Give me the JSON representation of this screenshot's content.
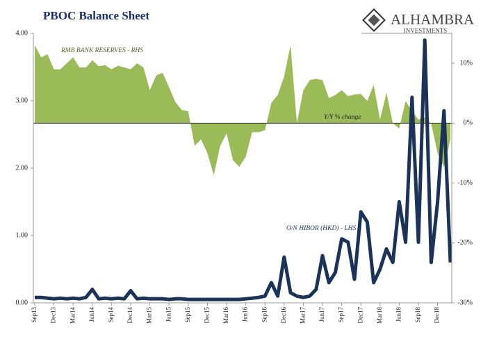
{
  "chart_data": {
    "type": "line",
    "title": "PBOC Balance Sheet",
    "logo": {
      "name": "ALHAMBRA",
      "tagline": "INVESTMENTS"
    },
    "annotations": [
      "RMB BANK RESERVES - RHS",
      "Y/Y % change",
      "O/N HIBOR (HKD) - LHS"
    ],
    "categories": [
      "Sep13",
      null,
      null,
      "Dec13",
      null,
      null,
      "Mar14",
      null,
      null,
      "Jun14",
      null,
      null,
      "Sep14",
      null,
      null,
      "Dec14",
      null,
      null,
      "Mar15",
      null,
      null,
      "Jun15",
      null,
      null,
      "Sep15",
      null,
      null,
      "Dec15",
      null,
      null,
      "Mar16",
      null,
      null,
      "Jun16",
      null,
      null,
      "Sep16",
      null,
      null,
      "Dec16",
      null,
      null,
      "Mar17",
      null,
      null,
      "Jun17",
      null,
      null,
      "Sep17",
      null,
      null,
      "Dec17",
      null,
      null,
      "Mar18",
      null,
      null,
      "Jun18",
      null,
      null,
      "Sep18",
      null,
      null,
      "Dec18",
      null,
      null
    ],
    "series": [
      {
        "name": "RMB BANK RESERVES - RHS",
        "type": "area",
        "axis": "y2",
        "color": "#9bbb59",
        "values": [
          13,
          11,
          11.5,
          9,
          9,
          10,
          11,
          9.3,
          9.3,
          10.5,
          9.5,
          9.7,
          9,
          9.6,
          9.3,
          9,
          10,
          9.3,
          5.5,
          8,
          8.4,
          6,
          3.5,
          2.2,
          2,
          -3.8,
          -2.7,
          -5,
          -8.7,
          -3.8,
          -1.7,
          -6.2,
          -7.3,
          -5.6,
          -1.5,
          -1.5,
          -1.2,
          3.4,
          4.7,
          7.8,
          13,
          0,
          5.5,
          7.2,
          7.4,
          7.2,
          4.2,
          4.7,
          5.5,
          4.5,
          4.8,
          4.9,
          3.7,
          6.4,
          0.6,
          5.1,
          0,
          -0.9,
          3.7,
          2,
          0.6,
          1,
          -0.1,
          -5,
          -7.3,
          -2.7
        ]
      },
      {
        "name": "O/N HIBOR (HKD) - LHS",
        "type": "line",
        "axis": "y",
        "color": "#1b3358",
        "values": [
          0.08,
          0.08,
          0.07,
          0.06,
          0.07,
          0.06,
          0.07,
          0.06,
          0.08,
          0.2,
          0.06,
          0.07,
          0.06,
          0.07,
          0.06,
          0.18,
          0.06,
          0.07,
          0.06,
          0.06,
          0.06,
          0.05,
          0.06,
          0.06,
          0.05,
          0.05,
          0.05,
          0.05,
          0.05,
          0.05,
          0.05,
          0.05,
          0.05,
          0.06,
          0.07,
          0.08,
          0.1,
          0.3,
          0.1,
          0.68,
          0.15,
          0.1,
          0.08,
          0.1,
          0.2,
          0.7,
          0.3,
          0.45,
          0.95,
          0.9,
          0.35,
          1.35,
          1.2,
          0.3,
          0.5,
          0.8,
          0.6,
          1.5,
          0.9,
          3.05,
          0.9,
          3.9,
          0.6,
          1.5,
          2.85,
          0.6
        ]
      }
    ],
    "ylim": [
      0,
      4
    ],
    "yticks": [
      {
        "value": 0,
        "label": "0.00"
      },
      {
        "value": 1,
        "label": "1.00"
      },
      {
        "value": 2,
        "label": "2.00"
      },
      {
        "value": 3,
        "label": "3.00"
      },
      {
        "value": 4,
        "label": "4.00"
      }
    ],
    "y2lim": [
      -30,
      15
    ],
    "y2ticks": [
      {
        "value": 10,
        "label": "10%"
      },
      {
        "value": 0,
        "label": "0%"
      },
      {
        "value": -10,
        "label": "-10%"
      },
      {
        "value": -20,
        "label": "-20%"
      },
      {
        "value": -30,
        "label": "-30%"
      }
    ]
  }
}
